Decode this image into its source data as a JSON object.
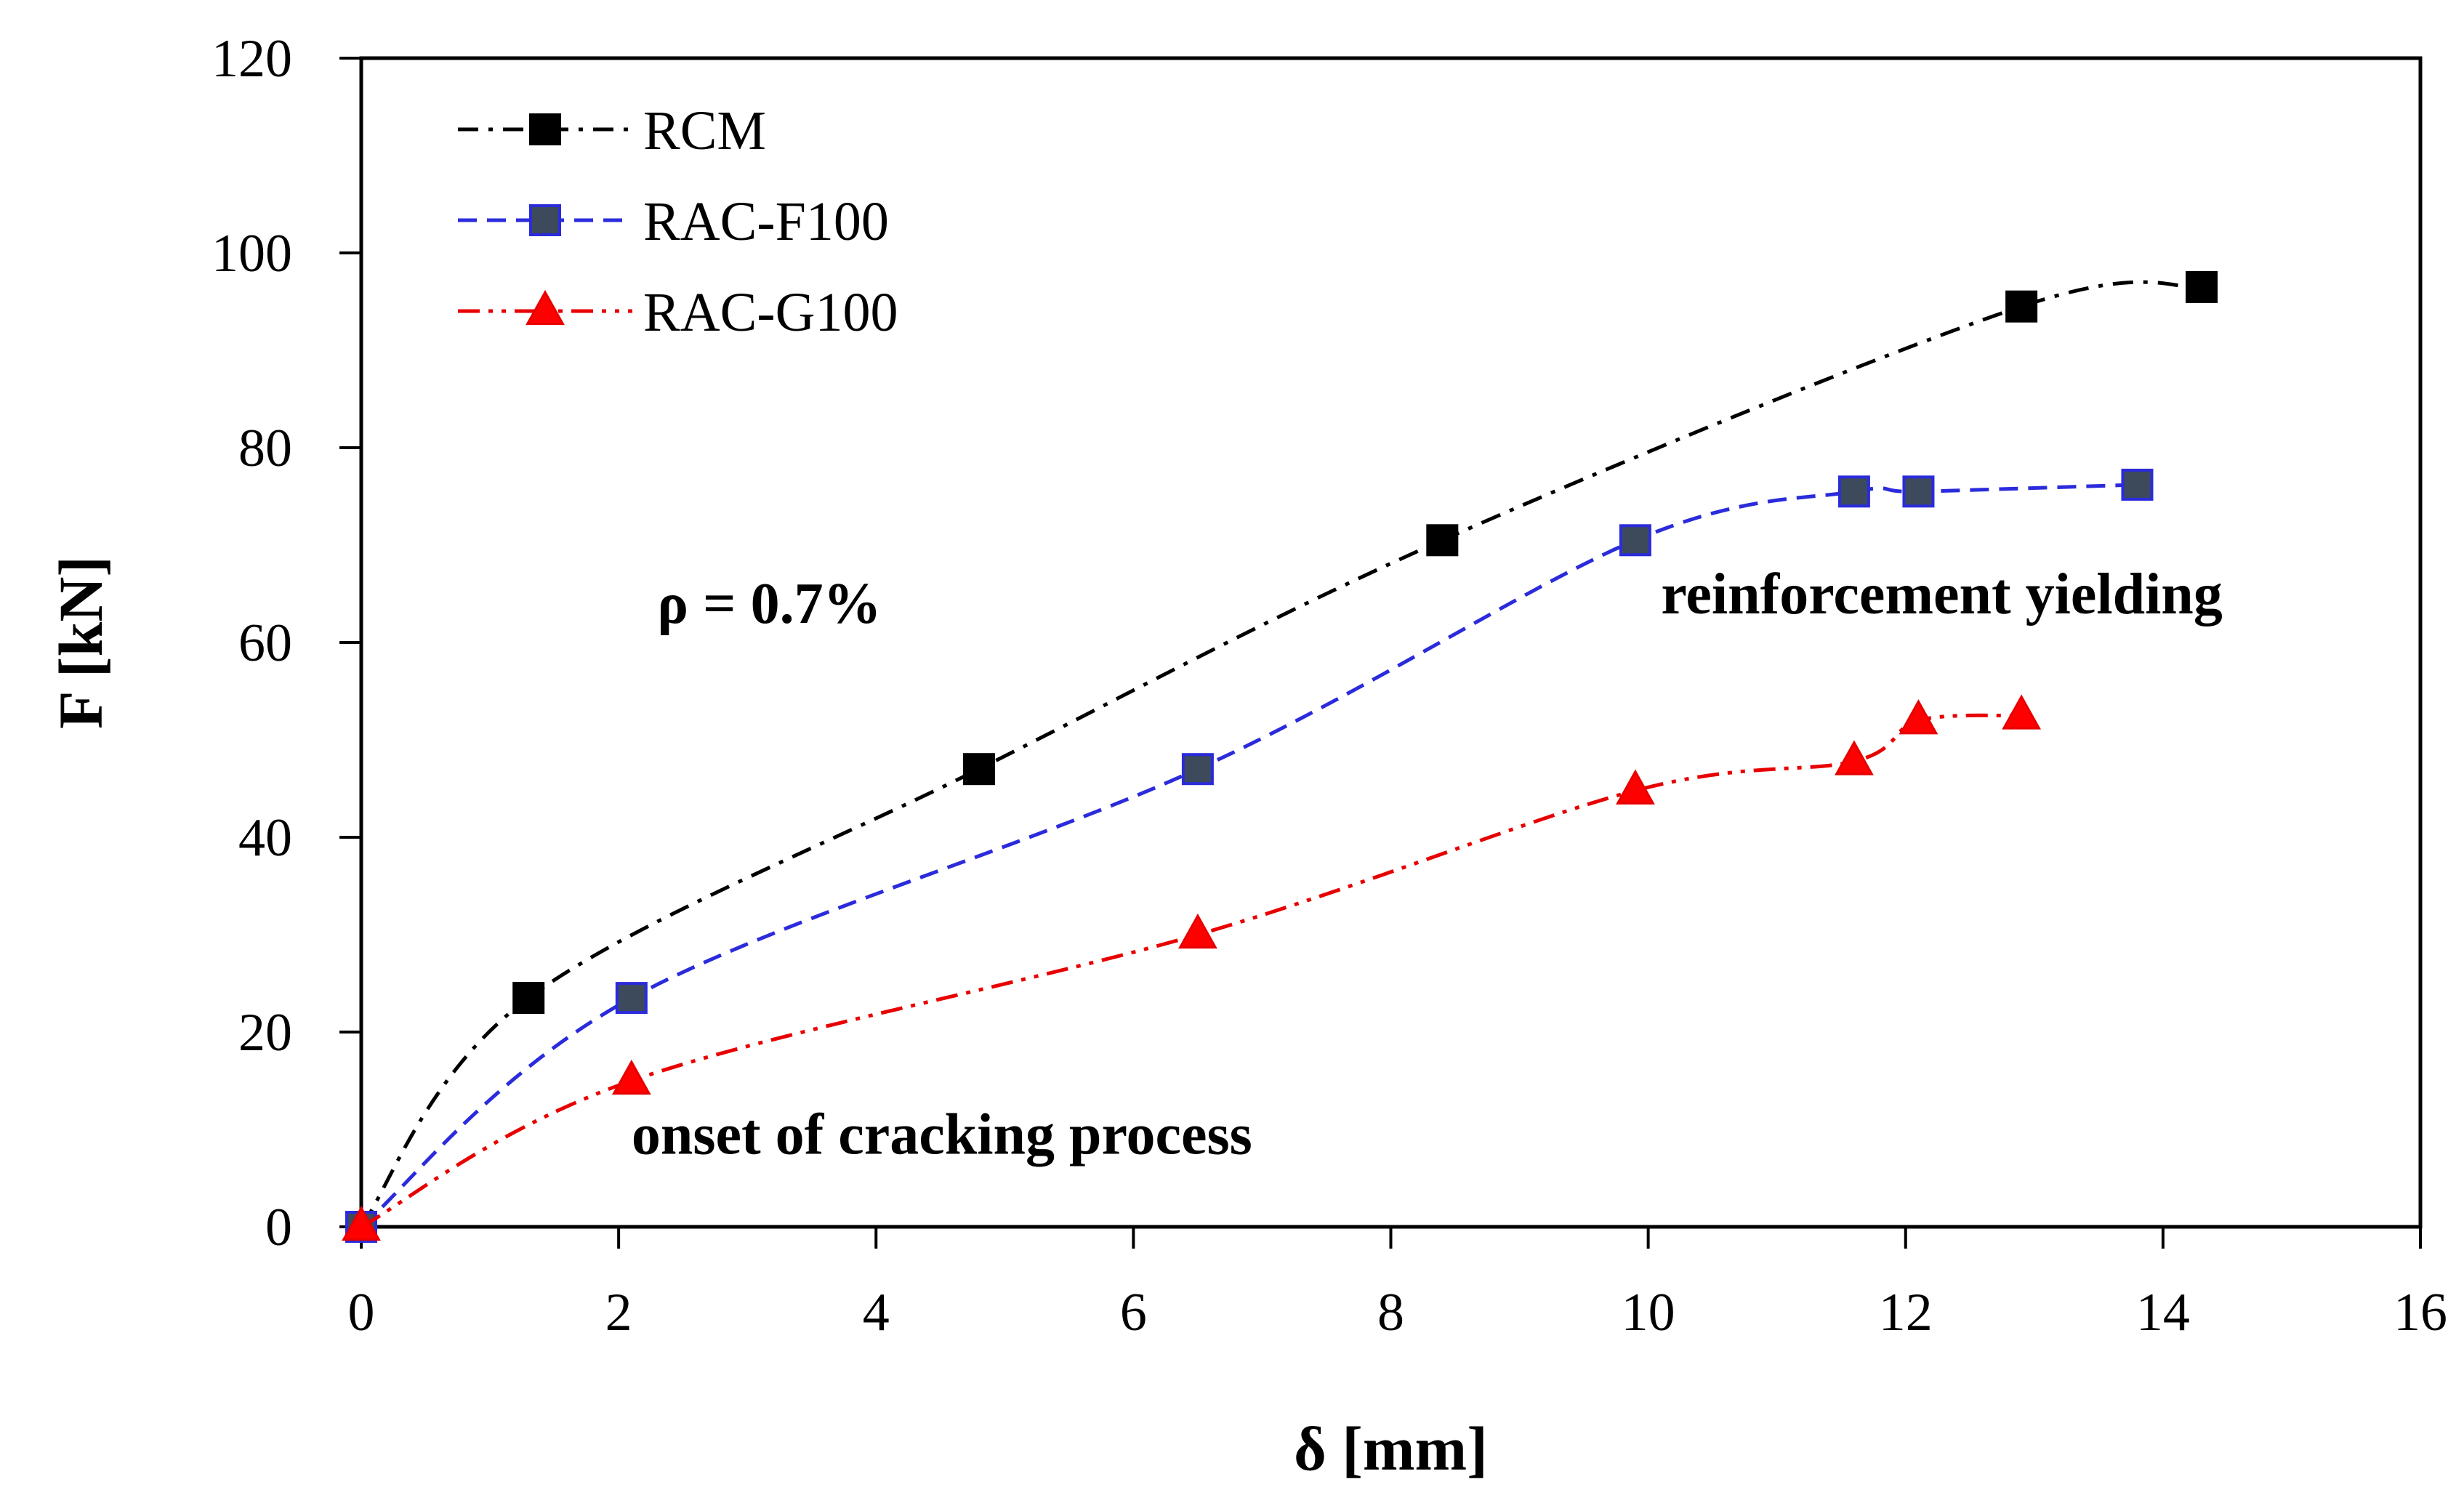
{
  "chart_data": {
    "type": "line",
    "title": "",
    "xlabel": "δ [mm]",
    "ylabel": "F [kN]",
    "xlim": [
      0,
      16
    ],
    "ylim": [
      0,
      120
    ],
    "xticks": [
      0,
      2,
      4,
      6,
      8,
      10,
      12,
      14,
      16
    ],
    "yticks": [
      0,
      20,
      40,
      60,
      80,
      100,
      120
    ],
    "grid": false,
    "legend_position": "top-left",
    "series": [
      {
        "name": "RCM",
        "color": "#000000",
        "marker": "square",
        "marker_color": "#000000",
        "line_style": "dash-dot",
        "x": [
          0,
          1.3,
          4.8,
          8.4,
          12.9,
          14.3
        ],
        "y": [
          0,
          23.5,
          47,
          70.5,
          94.5,
          96.5
        ]
      },
      {
        "name": "RAC-F100",
        "color": "#2b2bdc",
        "marker": "square",
        "marker_color": "#3d4a5c",
        "line_style": "dashed",
        "x": [
          0,
          2.1,
          6.5,
          9.9,
          11.6,
          12.1,
          13.8
        ],
        "y": [
          0,
          23.5,
          47,
          70.5,
          75.5,
          75.5,
          76.2
        ]
      },
      {
        "name": "RAC-G100",
        "color": "#e80000",
        "marker": "triangle",
        "marker_color": "#ff0000",
        "line_style": "dash-dot-dot",
        "x": [
          0,
          2.1,
          6.5,
          9.9,
          11.6,
          12.1,
          12.9
        ],
        "y": [
          0,
          15,
          30,
          44.8,
          47.8,
          52,
          52.5
        ]
      }
    ],
    "annotations": [
      {
        "text": "ρ = 0.7%",
        "x": 2.3,
        "y": 62
      },
      {
        "text": "reinforcement yielding",
        "x": 10.1,
        "y": 63
      },
      {
        "text": "onset of cracking process",
        "x": 2.1,
        "y": 7.5
      }
    ]
  }
}
